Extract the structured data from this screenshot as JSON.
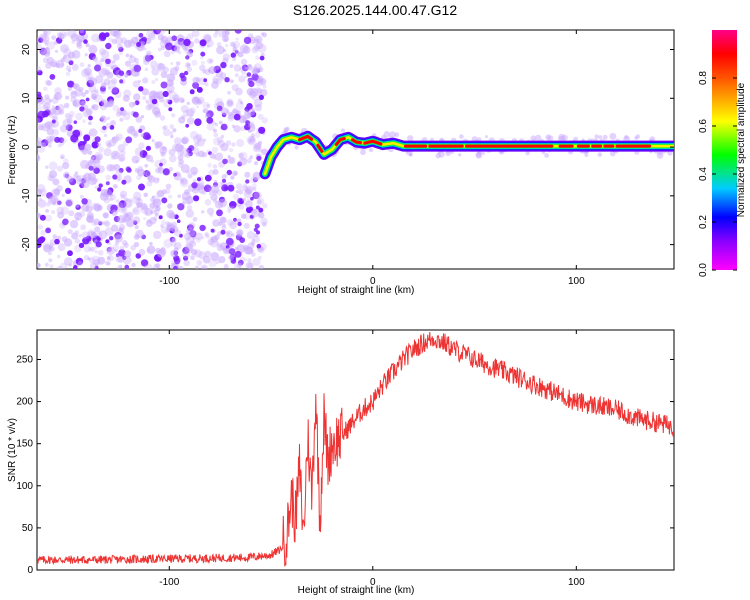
{
  "title": "S126.2025.144.00.47.G12",
  "chart_data": [
    {
      "type": "heatmap",
      "xlabel": "Height of straight line (km)",
      "ylabel": "Frequency (Hz)",
      "xlim": [
        -165,
        148
      ],
      "ylim": [
        -25,
        24
      ],
      "xticks": [
        -100,
        0,
        100
      ],
      "yticks": [
        -20,
        -10,
        0,
        10,
        20
      ],
      "colorbar": {
        "label": "Normalized spectral amplitude",
        "range": [
          0,
          1
        ],
        "ticks": [
          0.0,
          0.2,
          0.4,
          0.6,
          0.8
        ],
        "tick_labels": [
          "0.0",
          "0.2",
          "0.4",
          "0.6",
          "0.8"
        ]
      },
      "noise_region": {
        "x": [
          -165,
          -53
        ],
        "y": [
          -25,
          24
        ],
        "amplitude": [
          0.05,
          0.2
        ]
      },
      "ridge": {
        "x": [
          -53,
          -50,
          -47,
          -44,
          -40,
          -36,
          -32,
          -28,
          -24,
          -20,
          -16,
          -12,
          -8,
          -4,
          0,
          5,
          10,
          15,
          148
        ],
        "y": [
          -5.5,
          -2,
          0,
          1.5,
          2.0,
          1.5,
          2.2,
          1.0,
          -1.5,
          -0.5,
          1.5,
          2.0,
          1.0,
          0.8,
          1.2,
          0.5,
          0.8,
          0.2,
          0.2
        ],
        "amplitude_core": 0.9
      }
    },
    {
      "type": "line",
      "xlabel": "Height of straight line (km)",
      "ylabel": "SNR (10 * v/v)",
      "xlim": [
        -165,
        148
      ],
      "ylim": [
        0,
        285
      ],
      "xticks": [
        -100,
        0,
        100
      ],
      "yticks": [
        0,
        50,
        100,
        150,
        200,
        250
      ],
      "color": "#ee3333",
      "series": [
        {
          "x": [
            -165,
            -140,
            -110,
            -80,
            -60,
            -50,
            -45,
            -42,
            -40,
            -38,
            -36,
            -34,
            -32,
            -30,
            -28,
            -26,
            -24,
            -22,
            -20,
            -15,
            -10,
            -5,
            0,
            5,
            10,
            15,
            20,
            25,
            30,
            35,
            40,
            50,
            60,
            70,
            80,
            90,
            100,
            110,
            120,
            130,
            140,
            148
          ],
          "y": [
            12,
            12,
            13,
            14,
            15,
            18,
            25,
            45,
            90,
            60,
            120,
            40,
            160,
            90,
            210,
            60,
            180,
            130,
            150,
            160,
            175,
            190,
            200,
            220,
            235,
            250,
            262,
            270,
            275,
            270,
            262,
            250,
            240,
            230,
            220,
            210,
            200,
            195,
            190,
            180,
            175,
            170
          ]
        }
      ]
    }
  ]
}
